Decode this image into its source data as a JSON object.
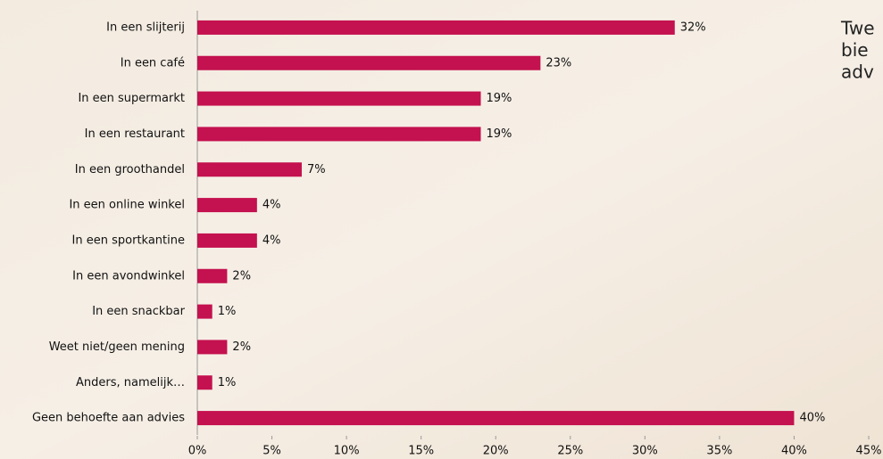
{
  "chart_data": {
    "type": "hbar",
    "categories": [
      "In een slijterij",
      "In een café",
      "In een supermarkt",
      "In een restaurant",
      "In een groothandel",
      "In een online winkel",
      "In een sportkantine",
      "In een avondwinkel",
      "In een snackbar",
      "Weet niet/geen mening",
      "Anders, namelijk…",
      "Geen behoefte aan advies"
    ],
    "values": [
      32,
      23,
      19,
      19,
      7,
      4,
      4,
      2,
      1,
      2,
      1,
      40
    ],
    "value_labels": [
      "32%",
      "23%",
      "19%",
      "19%",
      "7%",
      "4%",
      "4%",
      "2%",
      "1%",
      "2%",
      "1%",
      "40%"
    ],
    "color": "#c4114f",
    "xlim": [
      0,
      45
    ],
    "xticks": [
      {
        "value": 0,
        "label": "0%"
      },
      {
        "value": 5,
        "label": "5%"
      },
      {
        "value": 10,
        "label": "10%"
      },
      {
        "value": 15,
        "label": "15%"
      },
      {
        "value": 20,
        "label": "20%"
      },
      {
        "value": 25,
        "label": "25%"
      },
      {
        "value": 30,
        "label": "30%"
      },
      {
        "value": 35,
        "label": "35%"
      },
      {
        "value": 40,
        "label": "40%"
      },
      {
        "value": 45,
        "label": "45%"
      }
    ],
    "annotation": [
      "Twe",
      "bie",
      "adv"
    ]
  }
}
